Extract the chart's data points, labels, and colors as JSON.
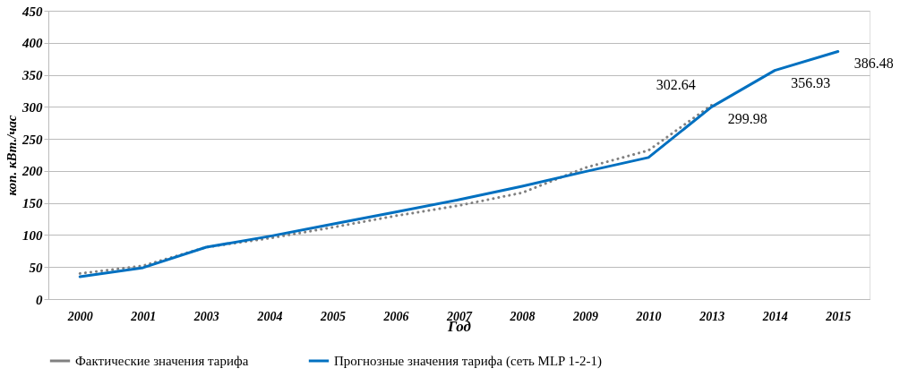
{
  "chart_data": {
    "type": "line",
    "xlabel": "Год",
    "ylabel": "коп. кВт./час",
    "categories": [
      "2000",
      "2001",
      "2003",
      "2004",
      "2005",
      "2006",
      "2007",
      "2008",
      "2009",
      "2010",
      "2013",
      "2014",
      "2015"
    ],
    "ylim": [
      0,
      450
    ],
    "yticks": [
      0,
      50,
      100,
      150,
      200,
      250,
      300,
      350,
      400,
      450
    ],
    "grid": "y",
    "legend": "bottom",
    "series": [
      {
        "name": "Фактические значения тарифа",
        "color": "#808080",
        "line_style": "dotted",
        "values": [
          40,
          52,
          81,
          95,
          112,
          130,
          146,
          166,
          205,
          232,
          302.64,
          null,
          null
        ],
        "value_labels": [
          null,
          null,
          null,
          null,
          null,
          null,
          null,
          null,
          null,
          null,
          "302.64",
          null,
          null
        ]
      },
      {
        "name": "Прогнозные значения тарифа (сеть MLP 1-2-1)",
        "color": "#0070c0",
        "line_style": "solid",
        "values": [
          35,
          49,
          81,
          98,
          117,
          136,
          155,
          176,
          199,
          221,
          299.98,
          356.93,
          386.48
        ],
        "value_labels": [
          null,
          null,
          null,
          null,
          null,
          null,
          null,
          null,
          null,
          null,
          "299.98",
          "356.93",
          "386.48"
        ]
      }
    ]
  }
}
